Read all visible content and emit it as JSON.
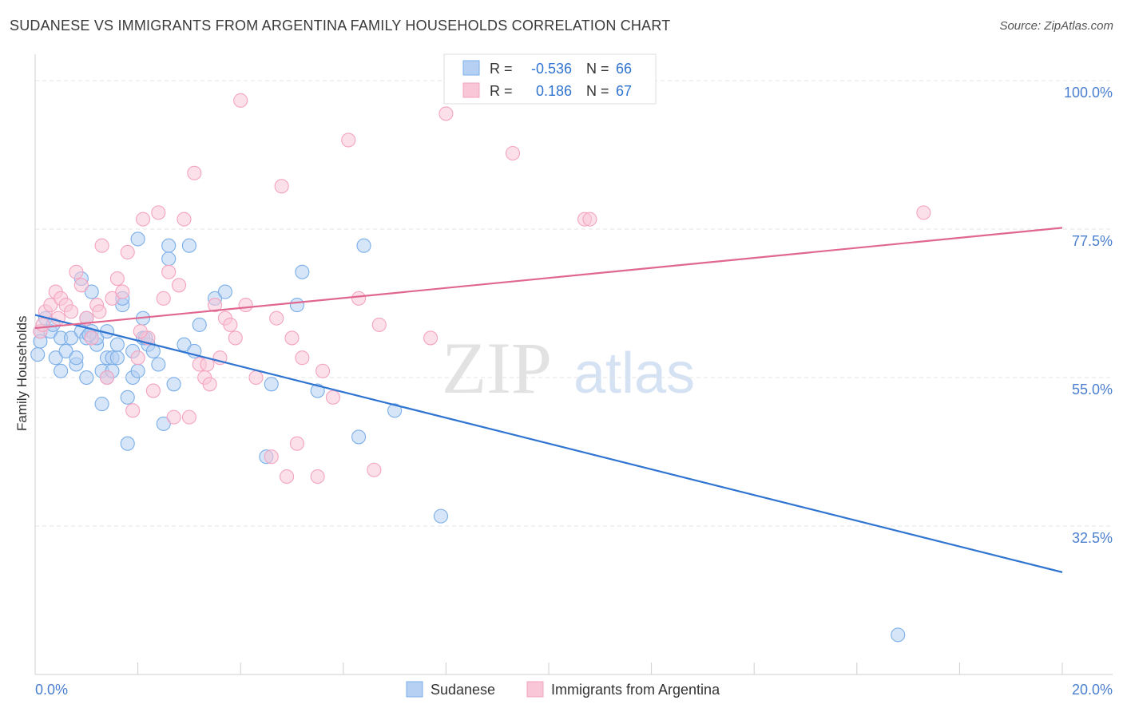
{
  "title": "SUDANESE VS IMMIGRANTS FROM ARGENTINA FAMILY HOUSEHOLDS CORRELATION CHART",
  "source": "Source: ZipAtlas.com",
  "watermark": {
    "zip": "ZIP",
    "atlas": "atlas"
  },
  "chart_data": {
    "type": "scatter",
    "title": "SUDANESE VS IMMIGRANTS FROM ARGENTINA FAMILY HOUSEHOLDS CORRELATION CHART",
    "xlabel": "",
    "ylabel": "Family Households",
    "xlim": [
      0,
      20
    ],
    "ylim": [
      10,
      104
    ],
    "x_tick_labels": {
      "left": "0.0%",
      "right": "20.0%"
    },
    "y_ticks": [
      {
        "value": 100.0,
        "label": "100.0%"
      },
      {
        "value": 77.5,
        "label": "77.5%"
      },
      {
        "value": 55.0,
        "label": "55.0%"
      },
      {
        "value": 32.5,
        "label": "32.5%"
      }
    ],
    "legend": {
      "position": "top-center",
      "rows": [
        {
          "r_label": "R =",
          "r_value": "-0.536",
          "n_label": "N =",
          "n_value": "66"
        },
        {
          "r_label": "R =",
          "r_value": "0.186",
          "n_label": "N =",
          "n_value": "67"
        }
      ]
    },
    "bottom_legend": [
      "Sudanese",
      "Immigrants from Argentina"
    ],
    "series": [
      {
        "name": "Sudanese",
        "color": "#7aaee8",
        "line_color": "#2f74d0",
        "r": -0.536,
        "n": 66,
        "trend": {
          "x": [
            0,
            20
          ],
          "y": [
            64.5,
            25.5
          ]
        },
        "points": [
          [
            0.1,
            62
          ],
          [
            0.2,
            64
          ],
          [
            0.3,
            62
          ],
          [
            0.4,
            58
          ],
          [
            0.5,
            56
          ],
          [
            0.5,
            61
          ],
          [
            0.6,
            59
          ],
          [
            0.7,
            61
          ],
          [
            0.8,
            57
          ],
          [
            0.8,
            58
          ],
          [
            0.9,
            62
          ],
          [
            0.9,
            70
          ],
          [
            1.0,
            64
          ],
          [
            1.0,
            61
          ],
          [
            1.0,
            55
          ],
          [
            1.1,
            62
          ],
          [
            1.1,
            68
          ],
          [
            1.2,
            60
          ],
          [
            1.2,
            61
          ],
          [
            1.3,
            56
          ],
          [
            1.3,
            51
          ],
          [
            1.4,
            62
          ],
          [
            1.4,
            55
          ],
          [
            1.4,
            58
          ],
          [
            1.5,
            56
          ],
          [
            1.5,
            58
          ],
          [
            1.6,
            58
          ],
          [
            1.6,
            60
          ],
          [
            1.7,
            66
          ],
          [
            1.7,
            67
          ],
          [
            1.8,
            52
          ],
          [
            1.8,
            45
          ],
          [
            1.9,
            59
          ],
          [
            1.9,
            55
          ],
          [
            2.0,
            56
          ],
          [
            2.0,
            76
          ],
          [
            2.1,
            64
          ],
          [
            2.1,
            61
          ],
          [
            2.2,
            60
          ],
          [
            2.3,
            59
          ],
          [
            2.4,
            57
          ],
          [
            2.5,
            48
          ],
          [
            2.6,
            75
          ],
          [
            2.6,
            73
          ],
          [
            2.7,
            54
          ],
          [
            2.9,
            60
          ],
          [
            3.0,
            75
          ],
          [
            3.1,
            59
          ],
          [
            3.2,
            63
          ],
          [
            3.5,
            67
          ],
          [
            3.7,
            68
          ],
          [
            4.5,
            43
          ],
          [
            4.6,
            54
          ],
          [
            5.1,
            66
          ],
          [
            5.2,
            71
          ],
          [
            5.5,
            53
          ],
          [
            6.3,
            46
          ],
          [
            6.4,
            75
          ],
          [
            7.0,
            50
          ],
          [
            7.9,
            34
          ],
          [
            16.8,
            16
          ],
          [
            0.05,
            58.5
          ],
          [
            0.1,
            60.5
          ],
          [
            1.05,
            61.5
          ],
          [
            2.15,
            61
          ],
          [
            0.35,
            63
          ]
        ]
      },
      {
        "name": "Immigrants from Argentina",
        "color": "#f4a3c0",
        "line_color": "#e0678f",
        "r": 0.186,
        "n": 67,
        "trend": {
          "x": [
            0,
            20
          ],
          "y": [
            62.5,
            77.7
          ]
        },
        "points": [
          [
            0.1,
            62
          ],
          [
            0.2,
            65
          ],
          [
            0.3,
            66
          ],
          [
            0.4,
            68
          ],
          [
            0.5,
            67
          ],
          [
            0.6,
            66
          ],
          [
            0.7,
            65
          ],
          [
            0.8,
            71
          ],
          [
            0.9,
            69
          ],
          [
            1.0,
            64
          ],
          [
            1.1,
            61
          ],
          [
            1.2,
            66
          ],
          [
            1.3,
            75
          ],
          [
            1.4,
            55
          ],
          [
            1.5,
            67
          ],
          [
            1.6,
            70
          ],
          [
            1.7,
            68
          ],
          [
            1.8,
            74
          ],
          [
            1.9,
            50
          ],
          [
            2.0,
            58
          ],
          [
            2.1,
            79
          ],
          [
            2.2,
            61
          ],
          [
            2.3,
            53
          ],
          [
            2.4,
            80
          ],
          [
            2.5,
            67
          ],
          [
            2.6,
            71
          ],
          [
            2.7,
            49
          ],
          [
            2.8,
            69
          ],
          [
            2.9,
            79
          ],
          [
            3.0,
            49
          ],
          [
            3.1,
            86
          ],
          [
            3.2,
            57
          ],
          [
            3.3,
            55
          ],
          [
            3.4,
            54
          ],
          [
            3.5,
            66
          ],
          [
            3.6,
            58
          ],
          [
            3.7,
            64
          ],
          [
            3.8,
            63
          ],
          [
            3.9,
            61
          ],
          [
            4.0,
            97
          ],
          [
            4.1,
            66
          ],
          [
            4.3,
            55
          ],
          [
            4.6,
            43
          ],
          [
            4.7,
            64
          ],
          [
            4.8,
            84
          ],
          [
            4.9,
            40
          ],
          [
            5.0,
            61
          ],
          [
            5.1,
            45
          ],
          [
            5.2,
            58
          ],
          [
            5.5,
            40
          ],
          [
            5.6,
            56
          ],
          [
            5.8,
            52
          ],
          [
            6.1,
            91
          ],
          [
            6.3,
            67
          ],
          [
            6.6,
            41
          ],
          [
            6.7,
            63
          ],
          [
            7.7,
            61
          ],
          [
            8.0,
            95
          ],
          [
            9.3,
            89
          ],
          [
            10.7,
            79
          ],
          [
            10.8,
            79
          ],
          [
            17.3,
            80
          ],
          [
            0.15,
            63
          ],
          [
            0.45,
            64
          ],
          [
            1.25,
            65
          ],
          [
            2.05,
            62
          ],
          [
            3.35,
            57
          ]
        ]
      }
    ]
  }
}
